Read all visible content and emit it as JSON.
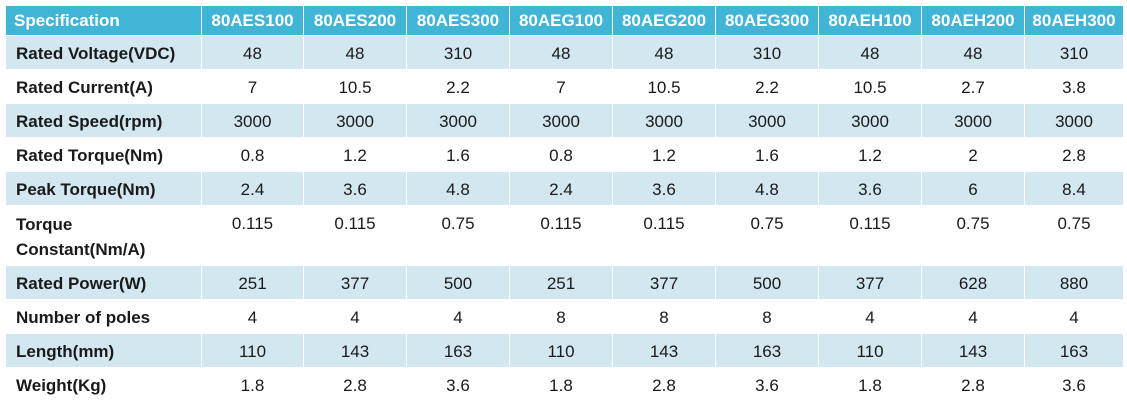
{
  "table": {
    "header": {
      "label": "Specification",
      "models": [
        "80AES100",
        "80AES200",
        "80AES300",
        "80AEG100",
        "80AEG200",
        "80AEG300",
        "80AEH100",
        "80AEH200",
        "80AEH300"
      ]
    },
    "rows": [
      {
        "label": "Rated Voltage(VDC)",
        "values": [
          "48",
          "48",
          "310",
          "48",
          "48",
          "310",
          "48",
          "48",
          "310"
        ]
      },
      {
        "label": "Rated Current(A)",
        "values": [
          "7",
          "10.5",
          "2.2",
          "7",
          "10.5",
          "2.2",
          "10.5",
          "2.7",
          "3.8"
        ]
      },
      {
        "label": "Rated Speed(rpm)",
        "values": [
          "3000",
          "3000",
          "3000",
          "3000",
          "3000",
          "3000",
          "3000",
          "3000",
          "3000"
        ]
      },
      {
        "label": "Rated Torque(Nm)",
        "values": [
          "0.8",
          "1.2",
          "1.6",
          "0.8",
          "1.2",
          "1.6",
          "1.2",
          "2",
          "2.8"
        ]
      },
      {
        "label": "Peak Torque(Nm)",
        "values": [
          "2.4",
          "3.6",
          "4.8",
          "2.4",
          "3.6",
          "4.8",
          "3.6",
          "6",
          "8.4"
        ]
      },
      {
        "label": "Torque Constant(Nm/A)",
        "values": [
          "0.115",
          "0.115",
          "0.75",
          "0.115",
          "0.115",
          "0.75",
          "0.115",
          "0.75",
          "0.75"
        ]
      },
      {
        "label": "Rated Power(W)",
        "values": [
          "251",
          "377",
          "500",
          "251",
          "377",
          "500",
          "377",
          "628",
          "880"
        ]
      },
      {
        "label": "Number of poles",
        "values": [
          "4",
          "4",
          "4",
          "8",
          "8",
          "8",
          "4",
          "4",
          "4"
        ]
      },
      {
        "label": "Length(mm)",
        "values": [
          "110",
          "143",
          "163",
          "110",
          "143",
          "163",
          "110",
          "143",
          "163"
        ]
      },
      {
        "label": "Weight(Kg)",
        "values": [
          "1.8",
          "2.8",
          "3.6",
          "1.8",
          "2.8",
          "3.6",
          "1.8",
          "2.8",
          "3.6"
        ]
      }
    ]
  },
  "colors": {
    "header_bg": "#41b5d5",
    "header_text": "#ffffff",
    "stripe_bg": "#d2e7f0",
    "plain_bg": "#ffffff"
  }
}
